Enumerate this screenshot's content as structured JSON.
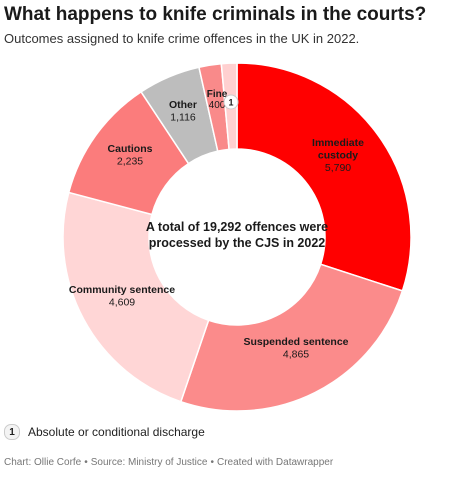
{
  "header": {
    "title": "What happens to knife criminals in the courts?",
    "subtitle": "Outcomes assigned to knife crime offences in the UK in 2022."
  },
  "chart_data": {
    "type": "pie",
    "variant": "donut",
    "start": "top",
    "direction": "clockwise",
    "center_label": [
      "A total of 19,292 offences were",
      "processed by the CJS in 2022"
    ],
    "slices": [
      {
        "label": [
          "Immediate",
          "custody"
        ],
        "value": 5790,
        "display": "5,790",
        "color": "#ff0000",
        "text_color": "#1a1a1a"
      },
      {
        "label": [
          "Suspended sentence"
        ],
        "value": 4865,
        "display": "4,865",
        "color": "#fb8b8b",
        "text_color": "#1a1a1a"
      },
      {
        "label": [
          "Community sentence"
        ],
        "value": 4609,
        "display": "4,609",
        "color": "#ffd6d6",
        "text_color": "#1a1a1a"
      },
      {
        "label": [
          "Cautions"
        ],
        "value": 2235,
        "display": "2,235",
        "color": "#fb7c7c",
        "text_color": "#1a1a1a"
      },
      {
        "label": [
          "Other"
        ],
        "value": 1116,
        "display": "1,116",
        "color": "#bdbdbd",
        "text_color": "#1a1a1a"
      },
      {
        "label": [
          "Fine"
        ],
        "value": 400,
        "display": "400",
        "color": "#f98a8a",
        "text_color": "#1a1a1a"
      },
      {
        "label": [],
        "value": 277,
        "display": "",
        "marker": "1",
        "color": "#ffd0d0",
        "text_color": "#1a1a1a"
      }
    ]
  },
  "footnote": {
    "marker": "1",
    "text": "Absolute or conditional discharge"
  },
  "credits": {
    "chart": "Chart: Ollie Corfe",
    "source": "Source: Ministry of Justice",
    "tool": "Created with Datawrapper",
    "separator": "•"
  }
}
